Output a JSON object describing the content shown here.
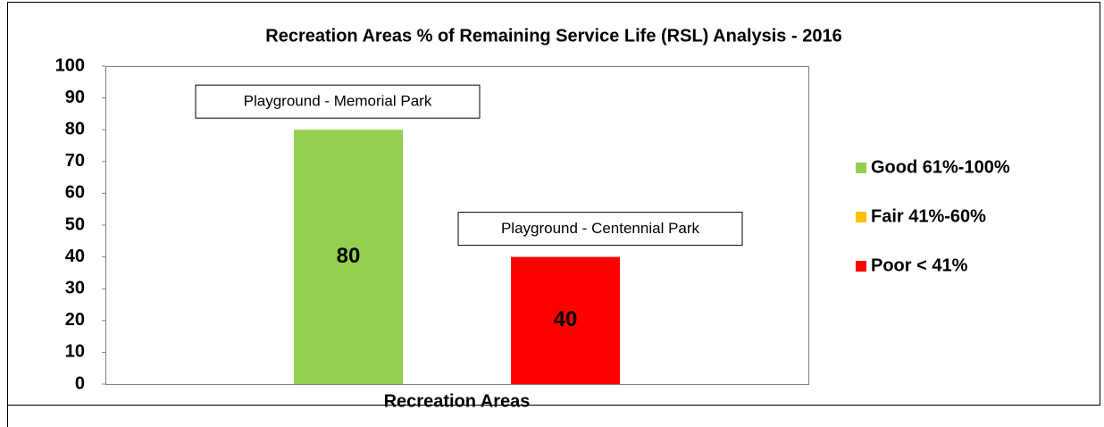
{
  "chart_data": {
    "type": "bar",
    "title": "Recreation Areas % of Remaining Service Life (RSL) Analysis - 2016",
    "categories": [
      "Recreation Areas"
    ],
    "series": [
      {
        "name": "Good 61%-100%",
        "color": "#92d050",
        "values": [
          80
        ],
        "annotation": "Playground - Memorial Park"
      },
      {
        "name": "Fair 41%-60%",
        "color": "#ffc000",
        "values": [
          null
        ]
      },
      {
        "name": "Poor < 41%",
        "color": "#ff0000",
        "values": [
          40
        ],
        "annotation": "Playground - Centennial Park"
      }
    ],
    "ylim": [
      0,
      100
    ],
    "yticks": [
      0,
      10,
      20,
      30,
      40,
      50,
      60,
      70,
      80,
      90,
      100
    ],
    "grid": false,
    "legend": "right"
  }
}
